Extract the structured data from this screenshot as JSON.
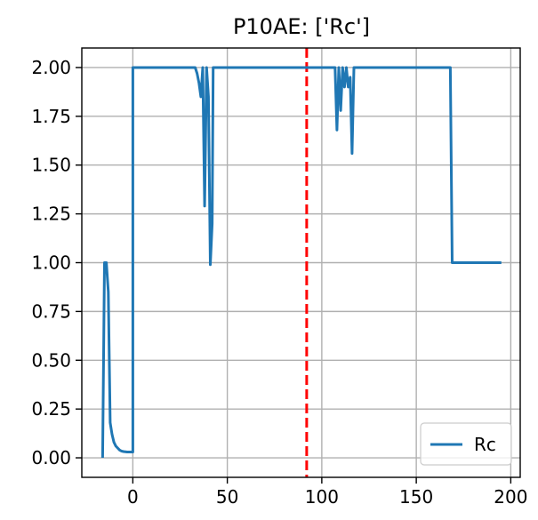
{
  "chart_data": {
    "type": "line",
    "title": "P10AE: ['Rc']",
    "xlabel": "",
    "ylabel": "",
    "xlim": [
      -27,
      205
    ],
    "ylim": [
      -0.1,
      2.1
    ],
    "xticks": [
      0,
      50,
      100,
      150,
      200
    ],
    "xtick_labels": [
      "0",
      "50",
      "100",
      "150",
      "200"
    ],
    "yticks": [
      0,
      0.25,
      0.5,
      0.75,
      1.0,
      1.25,
      1.5,
      1.75,
      2.0
    ],
    "ytick_labels": [
      "0.00",
      "0.25",
      "0.50",
      "0.75",
      "1.00",
      "1.25",
      "1.50",
      "1.75",
      "2.00"
    ],
    "grid": true,
    "legend_position": "lower-right",
    "series": [
      {
        "name": "Rc",
        "color": "#1f77b4",
        "points": [
          [
            -16,
            0.0
          ],
          [
            -15,
            1.0
          ],
          [
            -14,
            1.0
          ],
          [
            -13,
            0.85
          ],
          [
            -12,
            0.18
          ],
          [
            -11,
            0.12
          ],
          [
            -10,
            0.08
          ],
          [
            -9,
            0.06
          ],
          [
            -8,
            0.05
          ],
          [
            -7,
            0.04
          ],
          [
            -6,
            0.035
          ],
          [
            -5,
            0.032
          ],
          [
            -3,
            0.03
          ],
          [
            -1,
            0.03
          ],
          [
            0,
            0.03
          ],
          [
            0,
            2.0
          ],
          [
            33,
            2.0
          ],
          [
            34,
            1.97
          ],
          [
            35,
            1.92
          ],
          [
            36,
            1.85
          ],
          [
            37,
            2.0
          ],
          [
            38,
            1.29
          ],
          [
            39,
            2.0
          ],
          [
            40,
            1.85
          ],
          [
            41,
            0.99
          ],
          [
            42,
            1.2
          ],
          [
            42.5,
            2.0
          ],
          [
            107,
            2.0
          ],
          [
            108,
            1.68
          ],
          [
            109,
            2.0
          ],
          [
            110,
            1.78
          ],
          [
            111,
            2.0
          ],
          [
            112,
            1.9
          ],
          [
            113,
            2.0
          ],
          [
            114,
            1.9
          ],
          [
            115,
            1.95
          ],
          [
            116,
            1.56
          ],
          [
            117,
            2.0
          ],
          [
            168,
            2.0
          ],
          [
            169,
            1.0
          ],
          [
            195,
            1.0
          ]
        ]
      }
    ],
    "annotations": [
      {
        "type": "vline",
        "x": 92,
        "color": "#ff0000",
        "style": "dashed"
      }
    ]
  }
}
